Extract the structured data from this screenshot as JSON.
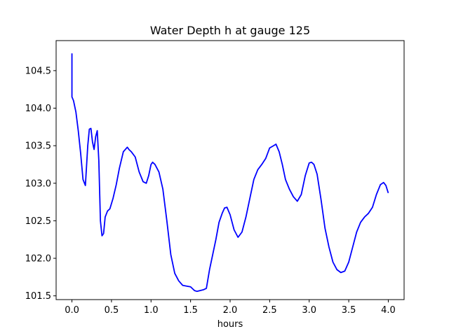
{
  "chart_data": {
    "type": "line",
    "title": "Water Depth h at gauge 125",
    "xlabel": "hours",
    "ylabel": "",
    "xlim": [
      -0.2,
      4.2
    ],
    "ylim": [
      101.45,
      104.9
    ],
    "grid": false,
    "xticks": [
      0.0,
      0.5,
      1.0,
      1.5,
      2.0,
      2.5,
      3.0,
      3.5,
      4.0
    ],
    "xtick_labels": [
      "0.0",
      "0.5",
      "1.0",
      "1.5",
      "2.0",
      "2.5",
      "3.0",
      "3.5",
      "4.0"
    ],
    "yticks": [
      101.5,
      102.0,
      102.5,
      103.0,
      103.5,
      104.0,
      104.5
    ],
    "ytick_labels": [
      "101.5",
      "102.0",
      "102.5",
      "103.0",
      "103.5",
      "104.0",
      "104.5"
    ],
    "series": [
      {
        "color": "#0000ff",
        "x": [
          0.0,
          0.0,
          0.0,
          0.02,
          0.05,
          0.08,
          0.11,
          0.14,
          0.17,
          0.2,
          0.22,
          0.24,
          0.26,
          0.28,
          0.3,
          0.32,
          0.34,
          0.36,
          0.38,
          0.4,
          0.42,
          0.45,
          0.48,
          0.52,
          0.56,
          0.6,
          0.65,
          0.7,
          0.72,
          0.75,
          0.8,
          0.85,
          0.9,
          0.94,
          0.97,
          1.0,
          1.02,
          1.05,
          1.1,
          1.15,
          1.2,
          1.25,
          1.3,
          1.35,
          1.4,
          1.45,
          1.5,
          1.55,
          1.58,
          1.62,
          1.66,
          1.7,
          1.74,
          1.78,
          1.82,
          1.86,
          1.9,
          1.93,
          1.96,
          2.0,
          2.05,
          2.1,
          2.15,
          2.2,
          2.25,
          2.3,
          2.35,
          2.4,
          2.45,
          2.5,
          2.55,
          2.58,
          2.62,
          2.66,
          2.7,
          2.75,
          2.8,
          2.85,
          2.9,
          2.95,
          3.0,
          3.03,
          3.06,
          3.1,
          3.15,
          3.2,
          3.25,
          3.3,
          3.35,
          3.4,
          3.45,
          3.5,
          3.55,
          3.6,
          3.65,
          3.7,
          3.75,
          3.8,
          3.85,
          3.9,
          3.94,
          3.97,
          4.0
        ],
        "y": [
          104.73,
          104.15,
          104.15,
          104.1,
          103.95,
          103.7,
          103.4,
          103.05,
          102.97,
          103.5,
          103.72,
          103.73,
          103.55,
          103.45,
          103.62,
          103.7,
          103.3,
          102.5,
          102.3,
          102.33,
          102.55,
          102.63,
          102.66,
          102.8,
          102.98,
          103.2,
          103.42,
          103.48,
          103.45,
          103.42,
          103.35,
          103.15,
          103.02,
          103.0,
          103.1,
          103.25,
          103.28,
          103.25,
          103.15,
          102.92,
          102.5,
          102.05,
          101.8,
          101.7,
          101.64,
          101.63,
          101.62,
          101.57,
          101.56,
          101.57,
          101.58,
          101.6,
          101.85,
          102.05,
          102.25,
          102.48,
          102.6,
          102.67,
          102.68,
          102.58,
          102.38,
          102.28,
          102.35,
          102.55,
          102.8,
          103.05,
          103.18,
          103.25,
          103.33,
          103.47,
          103.5,
          103.52,
          103.42,
          103.25,
          103.05,
          102.92,
          102.82,
          102.76,
          102.85,
          103.1,
          103.27,
          103.28,
          103.25,
          103.12,
          102.78,
          102.4,
          102.15,
          101.95,
          101.85,
          101.81,
          101.83,
          101.95,
          102.15,
          102.35,
          102.48,
          102.55,
          102.6,
          102.68,
          102.85,
          102.98,
          103.01,
          102.97,
          102.87
        ]
      }
    ]
  }
}
